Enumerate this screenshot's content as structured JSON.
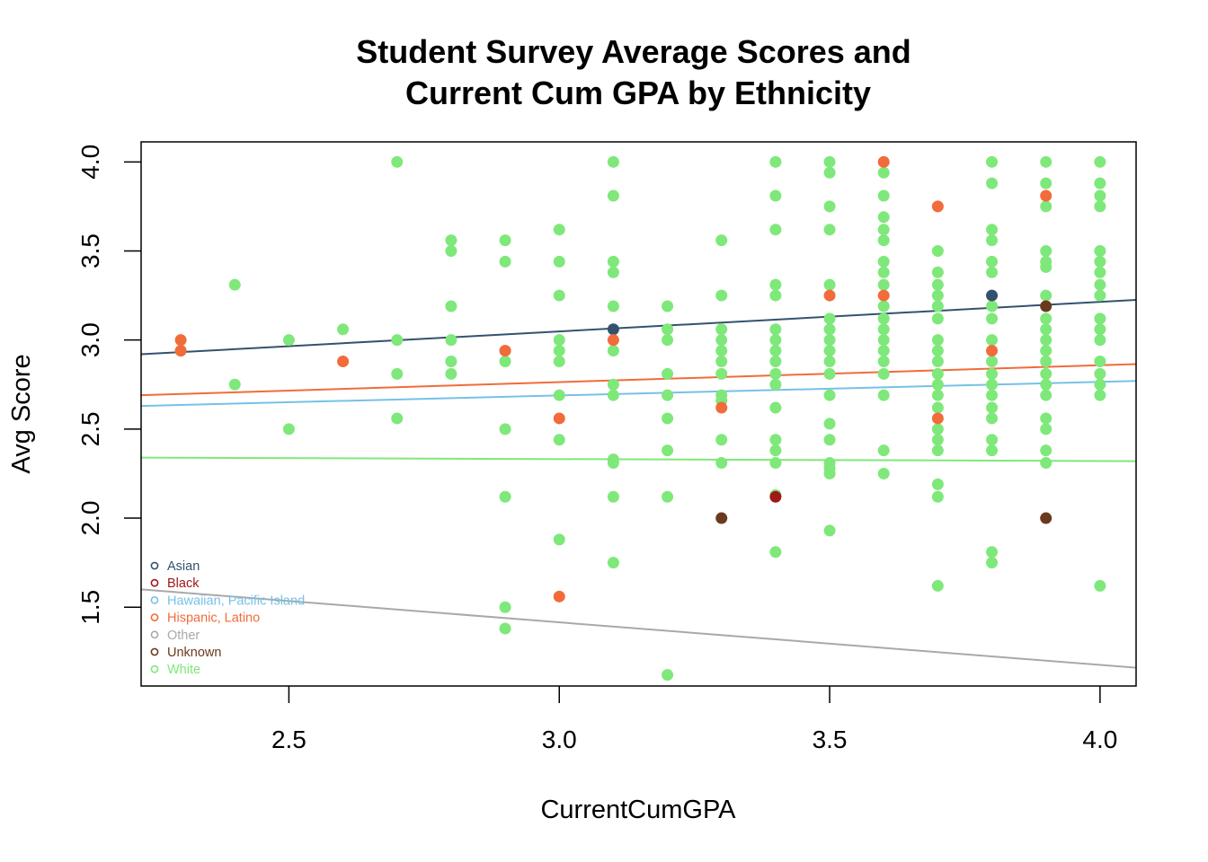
{
  "chart_data": {
    "type": "scatter",
    "title": [
      "Student Survey Average Scores and",
      "Current Cum GPA by Ethnicity"
    ],
    "xlabel": "CurrentCumGPA",
    "ylabel": "Avg Score",
    "xlim": [
      2.2267,
      4.0667
    ],
    "ylim": [
      1.0575,
      4.1125
    ],
    "xticks": [
      2.5,
      3.0,
      3.5,
      4.0
    ],
    "yticks": [
      1.5,
      2.0,
      2.5,
      3.0,
      3.5,
      4.0
    ],
    "xtick_labels": [
      "2.5",
      "3.0",
      "3.5",
      "4.0"
    ],
    "ytick_labels": [
      "1.5",
      "2.0",
      "2.5",
      "3.0",
      "3.5",
      "4.0"
    ],
    "grid": false,
    "legend_position": "bottom-left",
    "series": [
      {
        "name": "Asian",
        "color": "#34526E",
        "points": [
          [
            3.1,
            3.06
          ],
          [
            3.8,
            3.25
          ]
        ],
        "trend": [
          [
            2.2267,
            2.92
          ],
          [
            4.0667,
            3.225
          ]
        ]
      },
      {
        "name": "Black",
        "color": "#A01818",
        "points": [
          [
            3.4,
            2.12
          ]
        ],
        "trend": null
      },
      {
        "name": "Hawaiian, Pacific Island",
        "color": "#76C1E8",
        "points": [],
        "trend": [
          [
            2.2267,
            2.63
          ],
          [
            4.0667,
            2.77
          ]
        ]
      },
      {
        "name": "Hispanic, Latino",
        "color": "#F26B3A",
        "points": [
          [
            2.3,
            3.0
          ],
          [
            2.3,
            2.94
          ],
          [
            2.6,
            2.88
          ],
          [
            2.9,
            2.94
          ],
          [
            3.0,
            2.56
          ],
          [
            3.0,
            1.56
          ],
          [
            3.1,
            3.0
          ],
          [
            3.3,
            2.62
          ],
          [
            3.5,
            3.25
          ],
          [
            3.6,
            4.0
          ],
          [
            3.6,
            3.25
          ],
          [
            3.7,
            3.75
          ],
          [
            3.7,
            2.56
          ],
          [
            3.8,
            2.94
          ],
          [
            3.9,
            3.81
          ]
        ],
        "trend": [
          [
            2.2267,
            2.69
          ],
          [
            4.0667,
            2.865
          ]
        ]
      },
      {
        "name": "Other",
        "color": "#A9A9A9",
        "points": [],
        "trend": [
          [
            2.2267,
            1.6
          ],
          [
            4.0667,
            1.16
          ]
        ]
      },
      {
        "name": "Unknown",
        "color": "#6B3A1E",
        "points": [
          [
            3.3,
            2.0
          ],
          [
            3.9,
            2.0
          ],
          [
            3.9,
            3.19
          ]
        ],
        "trend": null
      },
      {
        "name": "White",
        "color": "#7FE87A",
        "points": [
          [
            2.3,
            2.94
          ],
          [
            2.4,
            3.31
          ],
          [
            2.4,
            2.75
          ],
          [
            2.5,
            3.0
          ],
          [
            2.5,
            2.5
          ],
          [
            2.6,
            3.06
          ],
          [
            2.7,
            4.0
          ],
          [
            2.7,
            3.0
          ],
          [
            2.7,
            2.81
          ],
          [
            2.7,
            2.56
          ],
          [
            2.8,
            3.56
          ],
          [
            2.8,
            3.5
          ],
          [
            2.8,
            3.19
          ],
          [
            2.8,
            3.0
          ],
          [
            2.8,
            2.88
          ],
          [
            2.8,
            2.81
          ],
          [
            2.9,
            3.56
          ],
          [
            2.9,
            3.44
          ],
          [
            2.9,
            2.94
          ],
          [
            2.9,
            2.88
          ],
          [
            2.9,
            2.5
          ],
          [
            2.9,
            2.12
          ],
          [
            2.9,
            1.5
          ],
          [
            2.9,
            1.38
          ],
          [
            3.0,
            3.62
          ],
          [
            3.0,
            3.44
          ],
          [
            3.0,
            3.25
          ],
          [
            3.0,
            3.0
          ],
          [
            3.0,
            2.94
          ],
          [
            3.0,
            2.88
          ],
          [
            3.0,
            2.69
          ],
          [
            3.0,
            2.44
          ],
          [
            3.0,
            1.88
          ],
          [
            3.1,
            4.0
          ],
          [
            3.1,
            3.81
          ],
          [
            3.1,
            3.44
          ],
          [
            3.1,
            3.38
          ],
          [
            3.1,
            3.19
          ],
          [
            3.1,
            2.94
          ],
          [
            3.1,
            2.75
          ],
          [
            3.1,
            2.69
          ],
          [
            3.1,
            2.33
          ],
          [
            3.1,
            2.31
          ],
          [
            3.1,
            2.12
          ],
          [
            3.1,
            1.75
          ],
          [
            3.2,
            3.19
          ],
          [
            3.2,
            3.06
          ],
          [
            3.2,
            3.0
          ],
          [
            3.2,
            2.81
          ],
          [
            3.2,
            2.69
          ],
          [
            3.2,
            2.56
          ],
          [
            3.2,
            2.38
          ],
          [
            3.2,
            2.12
          ],
          [
            3.2,
            1.12
          ],
          [
            3.3,
            3.56
          ],
          [
            3.3,
            3.25
          ],
          [
            3.3,
            3.06
          ],
          [
            3.3,
            3.0
          ],
          [
            3.3,
            2.94
          ],
          [
            3.3,
            2.88
          ],
          [
            3.3,
            2.81
          ],
          [
            3.3,
            2.69
          ],
          [
            3.3,
            2.66
          ],
          [
            3.3,
            2.44
          ],
          [
            3.3,
            2.31
          ],
          [
            3.4,
            4.0
          ],
          [
            3.4,
            3.81
          ],
          [
            3.4,
            3.62
          ],
          [
            3.4,
            3.31
          ],
          [
            3.4,
            3.25
          ],
          [
            3.4,
            3.06
          ],
          [
            3.4,
            3.0
          ],
          [
            3.4,
            2.94
          ],
          [
            3.4,
            2.88
          ],
          [
            3.4,
            2.81
          ],
          [
            3.4,
            2.75
          ],
          [
            3.4,
            2.62
          ],
          [
            3.4,
            2.44
          ],
          [
            3.4,
            2.38
          ],
          [
            3.4,
            2.31
          ],
          [
            3.4,
            2.13
          ],
          [
            3.4,
            1.81
          ],
          [
            3.5,
            4.0
          ],
          [
            3.5,
            3.94
          ],
          [
            3.5,
            3.75
          ],
          [
            3.5,
            3.62
          ],
          [
            3.5,
            3.31
          ],
          [
            3.5,
            3.12
          ],
          [
            3.5,
            3.06
          ],
          [
            3.5,
            3.0
          ],
          [
            3.5,
            2.94
          ],
          [
            3.5,
            2.88
          ],
          [
            3.5,
            2.81
          ],
          [
            3.5,
            2.69
          ],
          [
            3.5,
            2.53
          ],
          [
            3.5,
            2.44
          ],
          [
            3.5,
            2.31
          ],
          [
            3.5,
            2.28
          ],
          [
            3.5,
            2.25
          ],
          [
            3.5,
            1.93
          ],
          [
            3.6,
            3.94
          ],
          [
            3.6,
            3.81
          ],
          [
            3.6,
            3.69
          ],
          [
            3.6,
            3.62
          ],
          [
            3.6,
            3.56
          ],
          [
            3.6,
            3.44
          ],
          [
            3.6,
            3.38
          ],
          [
            3.6,
            3.31
          ],
          [
            3.6,
            3.19
          ],
          [
            3.6,
            3.12
          ],
          [
            3.6,
            3.06
          ],
          [
            3.6,
            3.0
          ],
          [
            3.6,
            2.94
          ],
          [
            3.6,
            2.88
          ],
          [
            3.6,
            2.81
          ],
          [
            3.6,
            2.69
          ],
          [
            3.6,
            2.38
          ],
          [
            3.6,
            2.25
          ],
          [
            3.7,
            3.5
          ],
          [
            3.7,
            3.38
          ],
          [
            3.7,
            3.31
          ],
          [
            3.7,
            3.25
          ],
          [
            3.7,
            3.19
          ],
          [
            3.7,
            3.12
          ],
          [
            3.7,
            3.0
          ],
          [
            3.7,
            2.94
          ],
          [
            3.7,
            2.88
          ],
          [
            3.7,
            2.81
          ],
          [
            3.7,
            2.75
          ],
          [
            3.7,
            2.69
          ],
          [
            3.7,
            2.62
          ],
          [
            3.7,
            2.5
          ],
          [
            3.7,
            2.44
          ],
          [
            3.7,
            2.38
          ],
          [
            3.7,
            2.19
          ],
          [
            3.7,
            2.12
          ],
          [
            3.7,
            1.62
          ],
          [
            3.8,
            4.0
          ],
          [
            3.8,
            3.88
          ],
          [
            3.8,
            3.62
          ],
          [
            3.8,
            3.56
          ],
          [
            3.8,
            3.44
          ],
          [
            3.8,
            3.38
          ],
          [
            3.8,
            3.19
          ],
          [
            3.8,
            3.12
          ],
          [
            3.8,
            3.0
          ],
          [
            3.8,
            2.88
          ],
          [
            3.8,
            2.81
          ],
          [
            3.8,
            2.75
          ],
          [
            3.8,
            2.69
          ],
          [
            3.8,
            2.62
          ],
          [
            3.8,
            2.56
          ],
          [
            3.8,
            2.44
          ],
          [
            3.8,
            2.38
          ],
          [
            3.8,
            1.81
          ],
          [
            3.8,
            1.75
          ],
          [
            3.9,
            4.0
          ],
          [
            3.9,
            3.88
          ],
          [
            3.9,
            3.75
          ],
          [
            3.9,
            3.5
          ],
          [
            3.9,
            3.44
          ],
          [
            3.9,
            3.41
          ],
          [
            3.9,
            3.25
          ],
          [
            3.9,
            3.12
          ],
          [
            3.9,
            3.06
          ],
          [
            3.9,
            3.0
          ],
          [
            3.9,
            2.94
          ],
          [
            3.9,
            2.88
          ],
          [
            3.9,
            2.81
          ],
          [
            3.9,
            2.75
          ],
          [
            3.9,
            2.69
          ],
          [
            3.9,
            2.56
          ],
          [
            3.9,
            2.5
          ],
          [
            3.9,
            2.38
          ],
          [
            3.9,
            2.31
          ],
          [
            4.0,
            4.0
          ],
          [
            4.0,
            3.88
          ],
          [
            4.0,
            3.81
          ],
          [
            4.0,
            3.75
          ],
          [
            4.0,
            3.5
          ],
          [
            4.0,
            3.44
          ],
          [
            4.0,
            3.38
          ],
          [
            4.0,
            3.31
          ],
          [
            4.0,
            3.25
          ],
          [
            4.0,
            3.12
          ],
          [
            4.0,
            3.06
          ],
          [
            4.0,
            3.0
          ],
          [
            4.0,
            2.88
          ],
          [
            4.0,
            2.81
          ],
          [
            4.0,
            2.75
          ],
          [
            4.0,
            2.69
          ],
          [
            4.0,
            1.62
          ]
        ],
        "trend": [
          [
            2.2267,
            2.34
          ],
          [
            4.0667,
            2.32
          ]
        ]
      }
    ]
  }
}
